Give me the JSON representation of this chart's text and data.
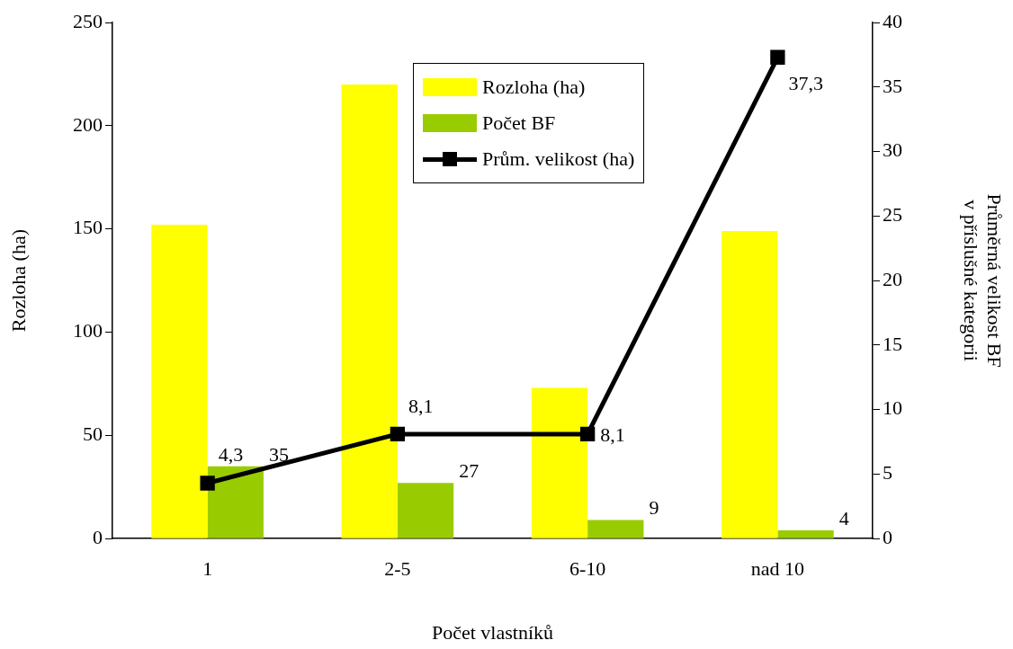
{
  "chart_data": {
    "type": "bar",
    "xlabel": "Počet vlastníků",
    "ylabel": "Rozloha (ha)",
    "y2label": "Průměrná velikost BF\nv příslušné kategorii",
    "categories": [
      "1",
      "2-5",
      "6-10",
      "nad 10"
    ],
    "series": [
      {
        "name": "Rozloha (ha)",
        "color": "#ffff00",
        "values": [
          152,
          220,
          73,
          149
        ]
      },
      {
        "name": "Počet BF",
        "color": "#99cc00",
        "values": [
          35,
          27,
          9,
          4
        ],
        "value_labels": [
          "35",
          "27",
          "9",
          "4"
        ]
      },
      {
        "name": "Prům. velikost (ha)",
        "type": "line",
        "axis": "y2",
        "color": "#000000",
        "marker": "square",
        "values": [
          4.3,
          8.1,
          8.1,
          37.3
        ],
        "value_labels": [
          "4,3",
          "8,1",
          "8,1",
          "37,3"
        ]
      }
    ],
    "ylim": [
      0,
      250
    ],
    "yticks": [
      0,
      50,
      100,
      150,
      200,
      250
    ],
    "y2lim": [
      0,
      40
    ],
    "y2ticks": [
      0,
      5,
      10,
      15,
      20,
      25,
      30,
      35,
      40
    ],
    "grid": false,
    "legend": "top"
  }
}
